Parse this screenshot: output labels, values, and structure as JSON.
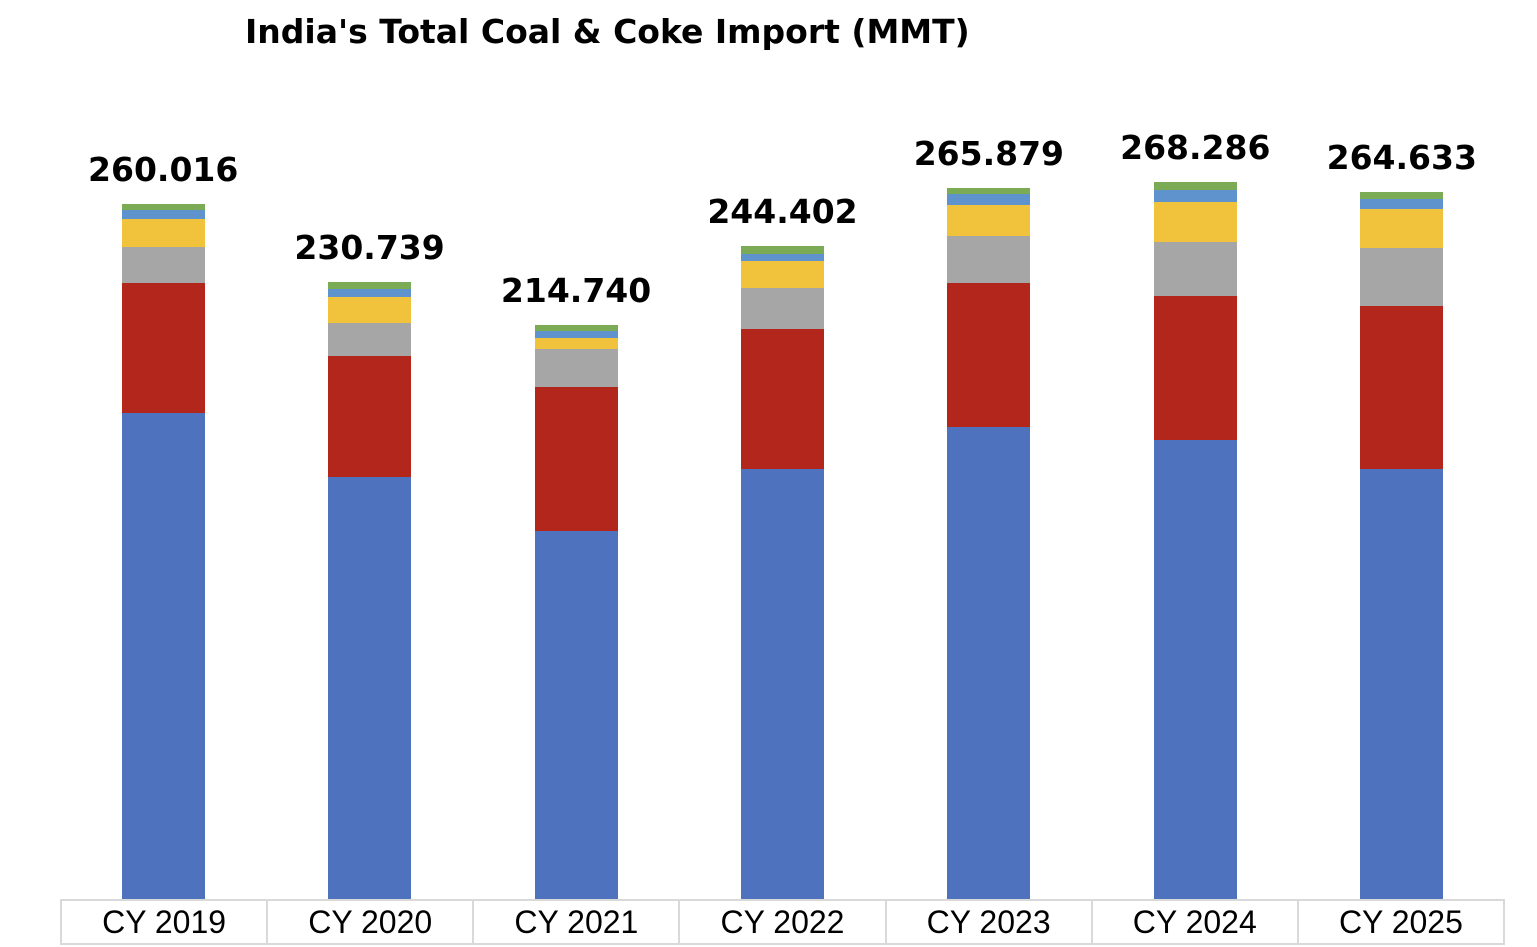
{
  "title": "India's Total Coal & Coke Import (MMT)",
  "colors": {
    "background": "#ffffff",
    "text": "#000000",
    "axis_border": "#d9d9d9"
  },
  "chart_data": {
    "type": "bar",
    "subtype": "stacked",
    "title": "India's Total Coal & Coke Import (MMT)",
    "xlabel": "",
    "ylabel": "",
    "legend": "none",
    "grid": false,
    "y_axis_shown": false,
    "value_labels_shown": true,
    "unit": "MMT",
    "categories": [
      "CY 2019",
      "CY 2020",
      "CY 2021",
      "CY 2022",
      "CY 2023",
      "CY 2024",
      "CY 2025"
    ],
    "totals": [
      260.016,
      230.739,
      214.74,
      244.402,
      265.879,
      268.286,
      264.633
    ],
    "total_labels": [
      "260.016",
      "230.739",
      "214.740",
      "244.402",
      "265.879",
      "268.286",
      "264.633"
    ],
    "series": [
      {
        "name": "blue-bottom-segment",
        "color": "#4f72bf",
        "values": [
          181.816,
          157.839,
          137.54,
          160.902,
          176.479,
          171.786,
          161.033
        ]
      },
      {
        "name": "red-segment",
        "color": "#b2261c",
        "values": [
          48.6,
          45.1,
          53.9,
          52.4,
          54.0,
          53.9,
          60.7
        ]
      },
      {
        "name": "gray-segment",
        "color": "#a6a6a6",
        "values": [
          13.4,
          12.7,
          14.3,
          15.3,
          17.5,
          20.1,
          21.8
        ]
      },
      {
        "name": "yellow-segment",
        "color": "#f1c23c",
        "values": [
          10.6,
          9.7,
          4.1,
          10.0,
          11.7,
          15.2,
          14.7
        ]
      },
      {
        "name": "light-blue-segment",
        "color": "#5e93ce",
        "values": [
          3.4,
          2.8,
          2.7,
          2.7,
          4.1,
          4.4,
          3.7
        ]
      },
      {
        "name": "green-segment",
        "color": "#7cab55",
        "values": [
          2.2,
          2.6,
          2.2,
          3.1,
          2.1,
          2.9,
          2.7
        ]
      }
    ],
    "ylim": [
      0,
      280
    ]
  }
}
